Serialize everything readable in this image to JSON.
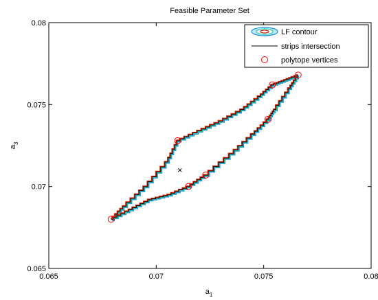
{
  "chart_data": {
    "type": "line",
    "title": "Feasible Parameter Set",
    "xlabel": "a",
    "xlabel_sub": "1",
    "ylabel": "a",
    "ylabel_sub": "3",
    "xlim": [
      0.065,
      0.08
    ],
    "ylim": [
      0.065,
      0.08
    ],
    "x_ticks": [
      0.065,
      0.07,
      0.075,
      0.08
    ],
    "x_tick_labels": [
      "0.065",
      "0.07",
      "0.075",
      "0.08"
    ],
    "y_ticks": [
      0.065,
      0.07,
      0.075,
      0.08
    ],
    "y_tick_labels": [
      "0.065",
      "0.07",
      "0.075",
      "0.08"
    ],
    "grid": false,
    "legend_position": "top-right",
    "legend": [
      {
        "label": "LF contour",
        "style": "contour"
      },
      {
        "label": "strips intersection",
        "style": "line"
      },
      {
        "label": "polytope vertices",
        "style": "circle-marker"
      }
    ],
    "center_marker": {
      "x": 0.0711,
      "y": 0.071
    },
    "outline": [
      [
        0.0679,
        0.068
      ],
      [
        0.0685,
        0.0688
      ],
      [
        0.0695,
        0.07
      ],
      [
        0.0705,
        0.0715
      ],
      [
        0.071,
        0.0728
      ],
      [
        0.072,
        0.0734
      ],
      [
        0.073,
        0.074
      ],
      [
        0.074,
        0.0747
      ],
      [
        0.0748,
        0.0755
      ],
      [
        0.0754,
        0.0762
      ],
      [
        0.076,
        0.0765
      ],
      [
        0.0766,
        0.0768
      ],
      [
        0.0762,
        0.076
      ],
      [
        0.0755,
        0.0747
      ],
      [
        0.0752,
        0.0741
      ],
      [
        0.0745,
        0.0732
      ],
      [
        0.0735,
        0.072
      ],
      [
        0.0723,
        0.0707
      ],
      [
        0.0715,
        0.07
      ],
      [
        0.0706,
        0.0695
      ],
      [
        0.0697,
        0.0692
      ],
      [
        0.0688,
        0.0686
      ],
      [
        0.0679,
        0.068
      ]
    ],
    "vertices": [
      {
        "x": 0.0679,
        "y": 0.068
      },
      {
        "x": 0.071,
        "y": 0.0728
      },
      {
        "x": 0.0754,
        "y": 0.0762
      },
      {
        "x": 0.0766,
        "y": 0.0768
      },
      {
        "x": 0.0752,
        "y": 0.0741
      },
      {
        "x": 0.0723,
        "y": 0.0707
      },
      {
        "x": 0.0715,
        "y": 0.07
      }
    ],
    "colors": {
      "contour_outer": "#1e90d8",
      "contour_inner": "#2ec8a8",
      "strips": "#000000",
      "inner_red": "#cc2200",
      "vertex_marker": "#ff0000",
      "center_marker": "#000000"
    }
  }
}
